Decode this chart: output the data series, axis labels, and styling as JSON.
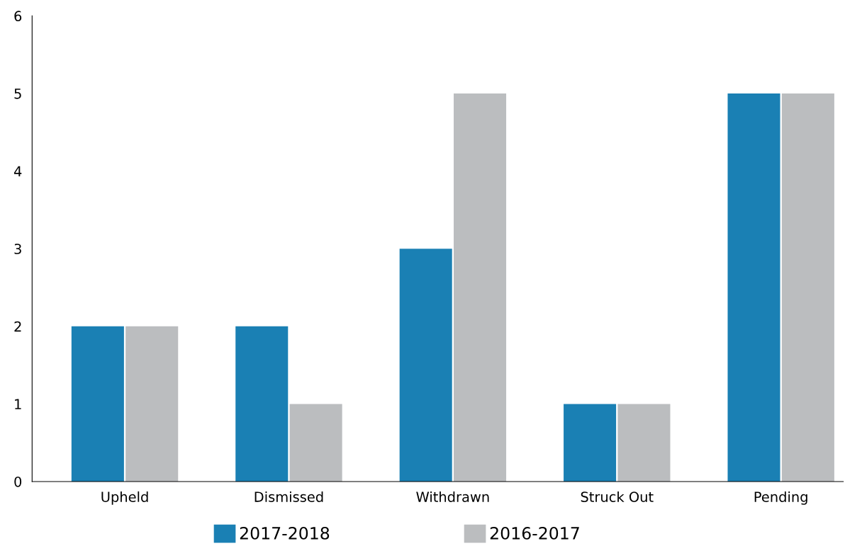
{
  "chart_data": {
    "type": "bar",
    "categories": [
      "Upheld",
      "Dismissed",
      "Withdrawn",
      "Struck Out",
      "Pending"
    ],
    "series": [
      {
        "name": "2017-2018",
        "color": "#1a80b4",
        "values": [
          2,
          2,
          3,
          1,
          5
        ]
      },
      {
        "name": "2016-2017",
        "color": "#bbbdbf",
        "values": [
          2,
          1,
          5,
          1,
          5
        ]
      }
    ],
    "ylim": [
      0,
      6
    ],
    "yticks": [
      0,
      1,
      2,
      3,
      4,
      5,
      6
    ],
    "grid": false,
    "legend": "bottom"
  }
}
